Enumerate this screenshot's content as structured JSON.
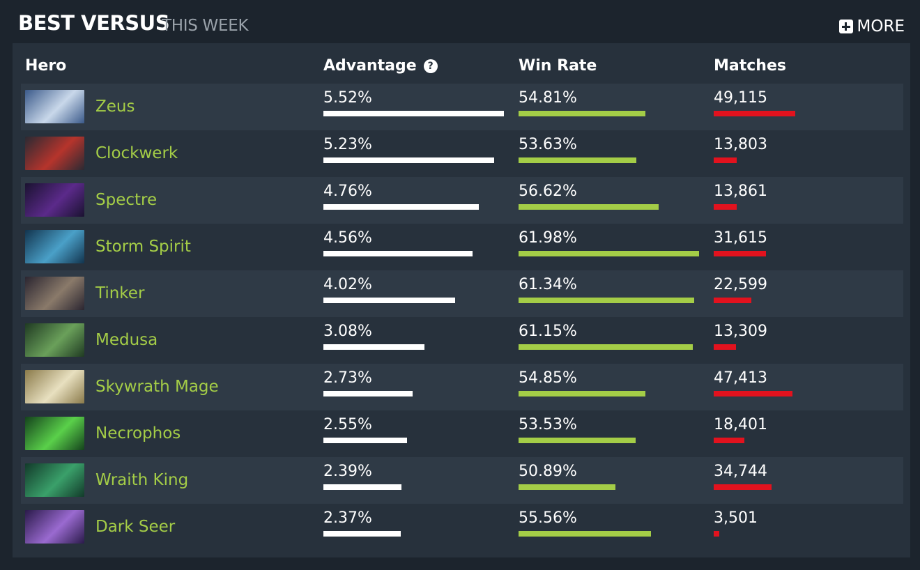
{
  "header": {
    "title": "BEST VERSUS",
    "subtitle": "THIS WEEK",
    "more_label": "MORE"
  },
  "columns": {
    "hero": "Hero",
    "advantage": "Advantage",
    "win_rate": "Win Rate",
    "matches": "Matches"
  },
  "colors": {
    "hero_name": "#a4cd47",
    "advantage_bar": "#ffffff",
    "winrate_bar": "#a4cd47",
    "matches_bar": "#e2121e"
  },
  "rows": [
    {
      "hero": "Zeus",
      "advantage": "5.52%",
      "win_rate": "54.81%",
      "matches": "49,115",
      "portrait": [
        "#3b5a8a",
        "#c9d8ea"
      ]
    },
    {
      "hero": "Clockwerk",
      "advantage": "5.23%",
      "win_rate": "53.63%",
      "matches": "13,803",
      "portrait": [
        "#2a2a33",
        "#b6342c"
      ]
    },
    {
      "hero": "Spectre",
      "advantage": "4.76%",
      "win_rate": "56.62%",
      "matches": "13,861",
      "portrait": [
        "#1a1230",
        "#5b2a8a"
      ]
    },
    {
      "hero": "Storm Spirit",
      "advantage": "4.56%",
      "win_rate": "61.98%",
      "matches": "31,615",
      "portrait": [
        "#12344e",
        "#4aa0c8"
      ]
    },
    {
      "hero": "Tinker",
      "advantage": "4.02%",
      "win_rate": "61.34%",
      "matches": "22,599",
      "portrait": [
        "#2a2530",
        "#8a7a6a"
      ]
    },
    {
      "hero": "Medusa",
      "advantage": "3.08%",
      "win_rate": "61.15%",
      "matches": "13,309",
      "portrait": [
        "#1f3a22",
        "#6aa05a"
      ]
    },
    {
      "hero": "Skywrath Mage",
      "advantage": "2.73%",
      "win_rate": "54.85%",
      "matches": "47,413",
      "portrait": [
        "#8a7a4a",
        "#e8e0c0"
      ]
    },
    {
      "hero": "Necrophos",
      "advantage": "2.55%",
      "win_rate": "53.53%",
      "matches": "18,401",
      "portrait": [
        "#14421c",
        "#5ad04a"
      ]
    },
    {
      "hero": "Wraith King",
      "advantage": "2.39%",
      "win_rate": "50.89%",
      "matches": "34,744",
      "portrait": [
        "#123a2a",
        "#3aa06a"
      ]
    },
    {
      "hero": "Dark Seer",
      "advantage": "2.37%",
      "win_rate": "55.56%",
      "matches": "3,501",
      "portrait": [
        "#2a1a4a",
        "#9a6ad0"
      ]
    }
  ]
}
